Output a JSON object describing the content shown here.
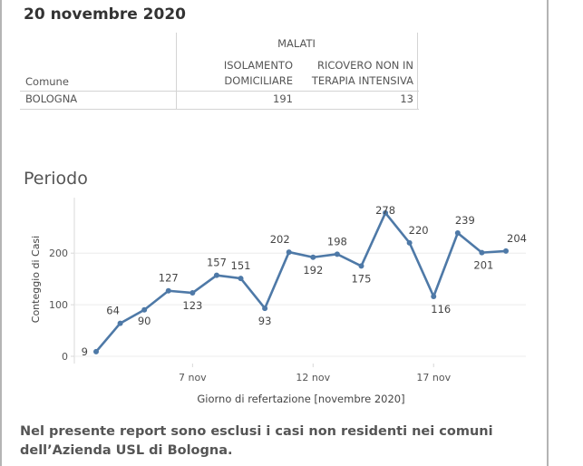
{
  "header": {
    "date_title": "20 novembre 2020"
  },
  "table": {
    "group_header": "MALATI",
    "col1_header_line1": "ISOLAMENTO",
    "col1_header_line2": "DOMICILIARE",
    "col2_header_line1": "RICOVERO NON IN",
    "col2_header_line2": "TERAPIA INTENSIVA",
    "row_header": "Comune",
    "rows": [
      {
        "comune": "BOLOGNA",
        "isolamento": "191",
        "ricovero": "13"
      }
    ]
  },
  "period_title": "Periodo",
  "footnote": {
    "line1": "Nel presente report sono esclusi i casi non residenti nei comuni",
    "line2": "dell’Azienda USL di Bologna."
  },
  "chart_data": {
    "type": "line",
    "title": "Periodo",
    "xlabel": "Giorno di refertazione [novembre 2020]",
    "ylabel": "Conteggio di Casi",
    "x": [
      3,
      4,
      5,
      6,
      7,
      8,
      9,
      10,
      11,
      12,
      13,
      14,
      15,
      16,
      17,
      18,
      19,
      20
    ],
    "series": [
      {
        "values": [
          9,
          64,
          90,
          127,
          123,
          157,
          151,
          93,
          202,
          192,
          198,
          175,
          278,
          220,
          116,
          239,
          201,
          204
        ]
      }
    ],
    "xticks": [
      7,
      12,
      17
    ],
    "xtick_labels": [
      "7 nov",
      "12 nov",
      "17 nov"
    ],
    "yticks": [
      0,
      100,
      200
    ],
    "ylim": [
      0,
      290
    ],
    "line_color": "#4e79a7",
    "grid": true
  }
}
